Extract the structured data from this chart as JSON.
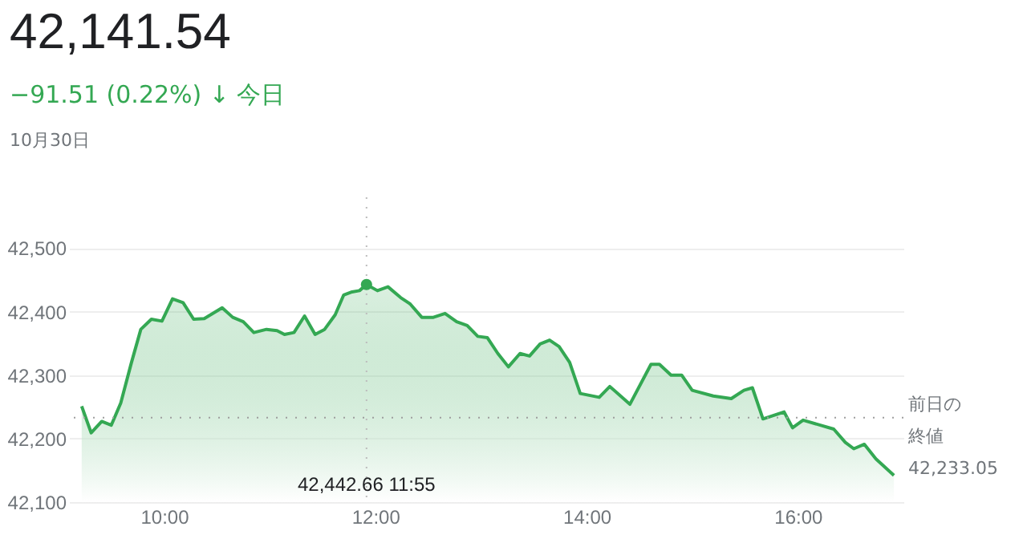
{
  "chart_data": {
    "type": "area",
    "title": "42,141.54",
    "subtitle": "−91.51 (0.22%) ↓ 今日",
    "annotations": [
      "10月30日",
      "42,442.66  11:55",
      "42,233.05"
    ],
    "x": [
      9.22,
      9.31,
      9.41,
      9.5,
      9.59,
      9.69,
      9.78,
      9.88,
      9.98,
      10.08,
      10.18,
      10.28,
      10.38,
      10.55,
      10.65,
      10.75,
      10.85,
      10.97,
      11.07,
      11.14,
      11.23,
      11.33,
      11.43,
      11.52,
      11.62,
      11.7,
      11.78,
      11.85,
      11.9167,
      12.02,
      12.12,
      12.24,
      12.33,
      12.44,
      12.55,
      12.66,
      12.77,
      12.87,
      12.97,
      13.06,
      13.16,
      13.26,
      13.37,
      13.46,
      13.56,
      13.65,
      13.74,
      13.84,
      13.94,
      14.12,
      14.22,
      14.41,
      14.61,
      14.69,
      14.8,
      14.9,
      15.0,
      15.2,
      15.37,
      15.49,
      15.57,
      15.67,
      15.87,
      15.95,
      16.05,
      16.34,
      16.45,
      16.53,
      16.63,
      16.74,
      16.91
    ],
    "series": [
      {
        "color": "#34a853",
        "values": [
          42251,
          42209,
          42227,
          42221,
          42256,
          42319,
          42372,
          42388,
          42385,
          42420,
          42414,
          42388,
          42389,
          42406,
          42391,
          42384,
          42367,
          42372,
          42370,
          42364,
          42367,
          42393,
          42364,
          42372,
          42395,
          42426,
          42431,
          42433,
          42442.66,
          42433,
          42439,
          42422,
          42412,
          42391,
          42391,
          42397,
          42384,
          42378,
          42361,
          42359,
          42334,
          42313,
          42334,
          42330,
          42349,
          42355,
          42345,
          42320,
          42271,
          42265,
          42282,
          42254,
          42317,
          42317,
          42300,
          42300,
          42276,
          42267,
          42263,
          42276,
          42280,
          42231,
          42242,
          42217,
          42229,
          42215,
          42194,
          42184,
          42191,
          42168,
          42142
        ]
      }
    ],
    "xlim": [
      9.1,
      17.0
    ],
    "xticks": [
      {
        "value": 10,
        "label": "10:00"
      },
      {
        "value": 12,
        "label": "12:00"
      },
      {
        "value": 14,
        "label": "14:00"
      },
      {
        "value": 16,
        "label": "16:00"
      }
    ],
    "ylim": [
      42100,
      42580
    ],
    "yticks": [
      {
        "value": 42100,
        "label": "42,100"
      },
      {
        "value": 42200,
        "label": "42,200"
      },
      {
        "value": 42300,
        "label": "42,300"
      },
      {
        "value": 42400,
        "label": "42,400"
      },
      {
        "value": 42500,
        "label": "42,500"
      }
    ],
    "grid": "y",
    "marker": "none",
    "line_style": "solid",
    "ref_lines": [
      {
        "axis": "y",
        "value": 42233.05,
        "label": "前日の終値",
        "color": "#9e9e9e",
        "line_style": "dotted"
      },
      {
        "axis": "x",
        "value": 11.9167,
        "label": null,
        "color": "#bdbdbd",
        "line_style": "dotted"
      }
    ]
  }
}
